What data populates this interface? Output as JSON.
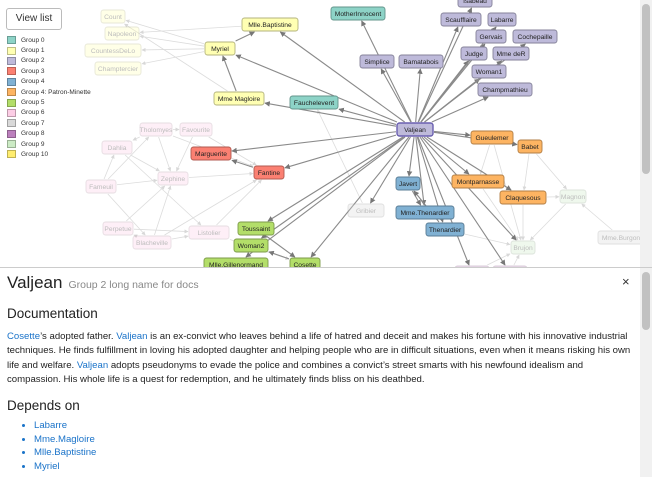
{
  "toolbar": {
    "view_list_label": "View list"
  },
  "legend": [
    {
      "label": "Group 0",
      "color": "#8dd3c7"
    },
    {
      "label": "Group 1",
      "color": "#ffffb3"
    },
    {
      "label": "Group 2",
      "color": "#bebada"
    },
    {
      "label": "Group 3",
      "color": "#fb8072"
    },
    {
      "label": "Group 4",
      "color": "#80b1d3"
    },
    {
      "label": "Group 4: Patron-Minette",
      "color": "#fdb462"
    },
    {
      "label": "Group 5",
      "color": "#b3de69"
    },
    {
      "label": "Group 6",
      "color": "#fccde5"
    },
    {
      "label": "Group 7",
      "color": "#d9d9d9"
    },
    {
      "label": "Group 8",
      "color": "#bc80bd"
    },
    {
      "label": "Group 9",
      "color": "#ccebc5"
    },
    {
      "label": "Group 10",
      "color": "#ffed6f"
    }
  ],
  "graph": {
    "selected": "Valjean",
    "nodes": [
      {
        "id": "Valjean",
        "color": "#bebada",
        "selected": true
      },
      {
        "id": "Mother Innocent",
        "label": "MotherInnocent",
        "color": "#8dd3c7"
      },
      {
        "id": "Simplice",
        "color": "#bebada"
      },
      {
        "id": "Gervais",
        "color": "#bebada"
      },
      {
        "id": "Labarre",
        "color": "#bebada"
      },
      {
        "id": "Isabeau",
        "color": "#bebada"
      },
      {
        "id": "Scaufflaire",
        "color": "#bebada"
      },
      {
        "id": "Judge",
        "color": "#bebada"
      },
      {
        "id": "Mme.deR",
        "label": "Mme deR",
        "color": "#bebada"
      },
      {
        "id": "Cochepaille",
        "color": "#bebada"
      },
      {
        "id": "Bamatabois",
        "color": "#bebada"
      },
      {
        "id": "Woman1",
        "color": "#bebada"
      },
      {
        "id": "Champmathieu",
        "color": "#bebada"
      },
      {
        "id": "Mlle.Baptistine",
        "label": "Mlle.Baptistine",
        "color": "#ffffb3"
      },
      {
        "id": "Myriel",
        "color": "#ffffb3"
      },
      {
        "id": "Mme.Magloire",
        "label": "Mme Magloire",
        "color": "#ffffb3"
      },
      {
        "id": "Count",
        "color": "#ffffb3",
        "faded": true
      },
      {
        "id": "Napoleon",
        "color": "#ffffb3",
        "faded": true
      },
      {
        "id": "CountessDeLo",
        "color": "#ffffb3",
        "faded": true
      },
      {
        "id": "Champtercier",
        "color": "#ffffb3",
        "faded": true
      },
      {
        "id": "Fauchelevent",
        "color": "#8dd3c7"
      },
      {
        "id": "Marguerite",
        "color": "#fb8072"
      },
      {
        "id": "Fantine",
        "color": "#fb8072"
      },
      {
        "id": "Javert",
        "color": "#80b1d3"
      },
      {
        "id": "Mme.Thenardier",
        "label": "Mme.Thenardier",
        "color": "#80b1d3"
      },
      {
        "id": "Thenardier",
        "color": "#80b1d3"
      },
      {
        "id": "Gueulemer",
        "color": "#fdb462"
      },
      {
        "id": "Babet",
        "color": "#fdb462"
      },
      {
        "id": "Montparnasse",
        "color": "#fdb462"
      },
      {
        "id": "Claquesous",
        "color": "#fdb462"
      },
      {
        "id": "Toussaint",
        "color": "#b3de69"
      },
      {
        "id": "Woman2",
        "color": "#b3de69"
      },
      {
        "id": "Mlle.Gillenormand",
        "label": "Mlle.Gillenormand",
        "color": "#b3de69"
      },
      {
        "id": "Cosette",
        "color": "#b3de69"
      },
      {
        "id": "Tholomyes",
        "color": "#fccde5",
        "faded": true
      },
      {
        "id": "Favourite",
        "color": "#fccde5",
        "faded": true
      },
      {
        "id": "Fameuil",
        "color": "#fccde5",
        "faded": true
      },
      {
        "id": "Blacheville",
        "color": "#fccde5",
        "faded": true
      },
      {
        "id": "Dahlia",
        "color": "#fccde5",
        "faded": true
      },
      {
        "id": "Zephine",
        "color": "#fccde5",
        "faded": true
      },
      {
        "id": "Listolier",
        "color": "#fccde5",
        "faded": true
      },
      {
        "id": "Perpetue",
        "color": "#fccde5",
        "faded": true
      },
      {
        "id": "Gribier",
        "color": "#d9d9d9",
        "faded": true
      },
      {
        "id": "Mme.Burgon",
        "label": "Mme.Burgon",
        "color": "#d9d9d9",
        "faded": true
      },
      {
        "id": "Brujon",
        "color": "#ccebc5",
        "faded": true
      },
      {
        "id": "Magnon",
        "color": "#ccebc5",
        "faded": true
      },
      {
        "id": "Eponine",
        "color": "#bc80bd",
        "faded": true
      },
      {
        "id": "Anzelma",
        "color": "#bc80bd",
        "faded": true
      }
    ]
  },
  "doc": {
    "title": "Valjean",
    "subtitle": "Group 2 long name for docs",
    "close_label": "×",
    "section_heading": "Documentation",
    "para": [
      {
        "t": "Cosette",
        "link": true
      },
      {
        "t": "’s adopted father. "
      },
      {
        "t": "Valjean",
        "link": true
      },
      {
        "t": " is an ex-convict who leaves behind a life of hatred and deceit and makes his fortune with his innovative industrial techniques. He finds fulfillment in loving his adopted daughter and helping people who are in difficult situations, even when it means risking his own life and welfare. "
      },
      {
        "t": "Valjean",
        "link": true
      },
      {
        "t": " adopts pseudonyms to evade the police and combines a convict’s street smarts with his newfound idealism and compassion. His whole life is a quest for redemption, and he ultimately finds bliss on his deathbed."
      }
    ],
    "depends_heading": "Depends on",
    "depends": [
      "Labarre",
      "Mme.Magloire",
      "Mlle.Baptistine",
      "Myriel"
    ]
  }
}
